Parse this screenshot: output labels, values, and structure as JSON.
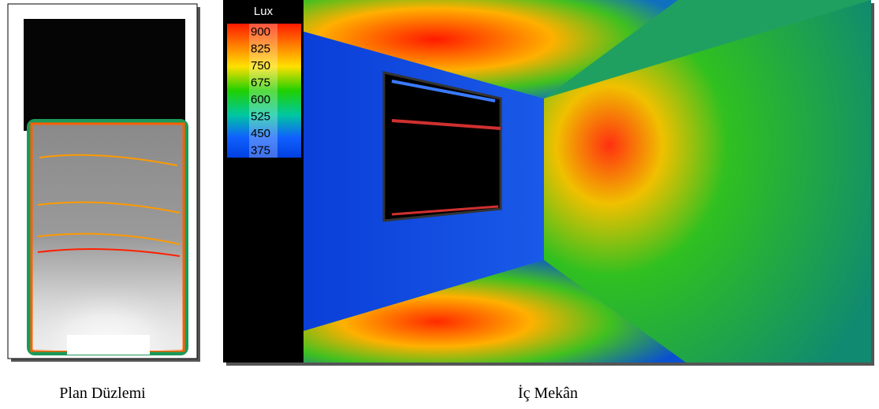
{
  "panels": [
    {
      "caption": "Plan Düzlemi"
    },
    {
      "caption": "İç Mekân",
      "legend": {
        "title": "Lux",
        "values": [
          900,
          825,
          750,
          675,
          600,
          525,
          450,
          375
        ]
      }
    }
  ]
}
